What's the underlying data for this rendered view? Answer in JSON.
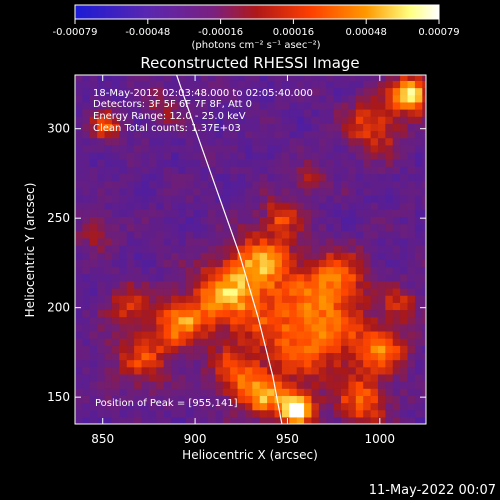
{
  "colorbar": {
    "ticks": [
      "-0.00079",
      "-0.00048",
      "-0.00016",
      "0.00016",
      "0.00048",
      "0.00079"
    ],
    "units": "(photons cm⁻² s⁻¹ asec⁻²)",
    "colors": [
      "#1b1bd6",
      "#5a26b0",
      "#7a2080",
      "#b01818",
      "#ff4000",
      "#ff9900",
      "#ffff80",
      "#ffffff"
    ]
  },
  "chart_data": {
    "type": "heatmap",
    "title": "Reconstructed RHESSI Image",
    "xlabel": "Heliocentric X (arcsec)",
    "ylabel": "Heliocentric Y (arcsec)",
    "xlim": [
      835,
      1025
    ],
    "ylim": [
      135,
      330
    ],
    "xticks": [
      850,
      900,
      950,
      1000
    ],
    "yticks": [
      150,
      200,
      250,
      300
    ],
    "vlim": [
      -0.00079,
      0.00079
    ],
    "peak": [
      955,
      141
    ],
    "annotations": [
      "18-May-2012 02:03:48.000 to 02:05:40.000",
      "Detectors: 3F 5F 6F 7F 8F, Att 0",
      "Energy Range: 12.0 - 25.0 keV",
      "Clean    Total counts: 1.37E+03",
      "Position of Peak = [955,141]"
    ],
    "limb_curve": [
      [
        890,
        330
      ],
      [
        900,
        300
      ],
      [
        912,
        265
      ],
      [
        924,
        230
      ],
      [
        934,
        195
      ],
      [
        942,
        162
      ],
      [
        947,
        135
      ]
    ]
  },
  "footer": {
    "timestamp": "11-May-2022 00:07"
  }
}
